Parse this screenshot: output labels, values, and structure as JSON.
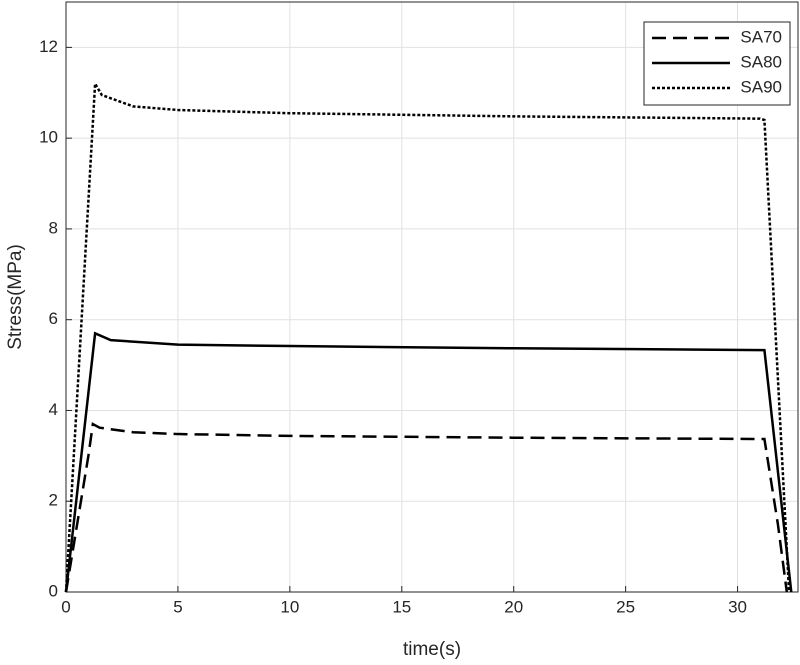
{
  "chart_data": {
    "type": "line",
    "x_label": "time(s)",
    "y_label": "Stress(MPa)",
    "xlim": [
      0,
      32.7
    ],
    "ylim": [
      0,
      13
    ],
    "xticks": [
      0,
      5,
      10,
      15,
      20,
      25,
      30
    ],
    "yticks": [
      0,
      2,
      4,
      6,
      8,
      10,
      12
    ],
    "grid": true,
    "legend": "upper right",
    "series": [
      {
        "name": "SA70",
        "color": "#000000",
        "style": "dashed",
        "x": [
          0,
          0.5,
          1.0,
          1.2,
          1.5,
          3,
          5,
          10,
          20,
          31.2,
          31.8,
          32.2
        ],
        "values": [
          0,
          1.5,
          3.0,
          3.7,
          3.62,
          3.52,
          3.48,
          3.44,
          3.4,
          3.37,
          1.5,
          0
        ]
      },
      {
        "name": "SA80",
        "color": "#000000",
        "style": "solid",
        "x": [
          0,
          1.3,
          2,
          5,
          10,
          20,
          31.2,
          31.5,
          32.4
        ],
        "values": [
          0,
          5.7,
          5.55,
          5.45,
          5.42,
          5.37,
          5.33,
          4.0,
          0
        ]
      },
      {
        "name": "SA90",
        "color": "#000000",
        "style": "dotted",
        "x": [
          0,
          1.3,
          1.6,
          3,
          5,
          10,
          20,
          31.0,
          31.2,
          32.3
        ],
        "values": [
          0,
          11.2,
          10.95,
          10.7,
          10.62,
          10.55,
          10.48,
          10.43,
          10.4,
          0
        ]
      }
    ]
  }
}
